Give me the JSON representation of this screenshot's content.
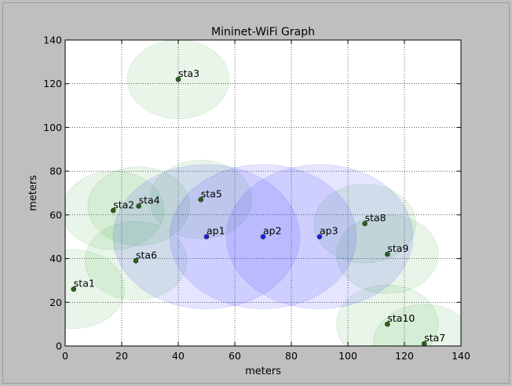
{
  "chart_data": {
    "type": "scatter",
    "title": "Mininet-WiFi Graph",
    "xlabel": "meters",
    "ylabel": "meters",
    "xlim": [
      0,
      140
    ],
    "ylim": [
      0,
      140
    ],
    "xticks": [
      0,
      20,
      40,
      60,
      80,
      100,
      120,
      140
    ],
    "yticks": [
      0,
      20,
      40,
      60,
      80,
      100,
      120,
      140
    ],
    "grid": true,
    "series": [
      {
        "kind": "station",
        "color": "#2e5e1e",
        "range_color": "#2ca02c",
        "points": [
          {
            "label": "sta1",
            "x": 3,
            "y": 26,
            "range": 18
          },
          {
            "label": "sta2",
            "x": 17,
            "y": 62,
            "range": 18
          },
          {
            "label": "sta3",
            "x": 40,
            "y": 122,
            "range": 18
          },
          {
            "label": "sta4",
            "x": 26,
            "y": 64,
            "range": 18
          },
          {
            "label": "sta5",
            "x": 48,
            "y": 67,
            "range": 18
          },
          {
            "label": "sta6",
            "x": 25,
            "y": 39,
            "range": 18
          },
          {
            "label": "sta7",
            "x": 127,
            "y": 1,
            "range": 18
          },
          {
            "label": "sta8",
            "x": 106,
            "y": 56,
            "range": 18
          },
          {
            "label": "sta9",
            "x": 114,
            "y": 42,
            "range": 18
          },
          {
            "label": "sta10",
            "x": 114,
            "y": 10,
            "range": 18
          }
        ]
      },
      {
        "kind": "access-point",
        "color": "#1a1aff",
        "range_color": "#3333ff",
        "points": [
          {
            "label": "ap1",
            "x": 50,
            "y": 50,
            "range": 33
          },
          {
            "label": "ap2",
            "x": 70,
            "y": 50,
            "range": 33
          },
          {
            "label": "ap3",
            "x": 90,
            "y": 50,
            "range": 33
          }
        ]
      }
    ]
  }
}
